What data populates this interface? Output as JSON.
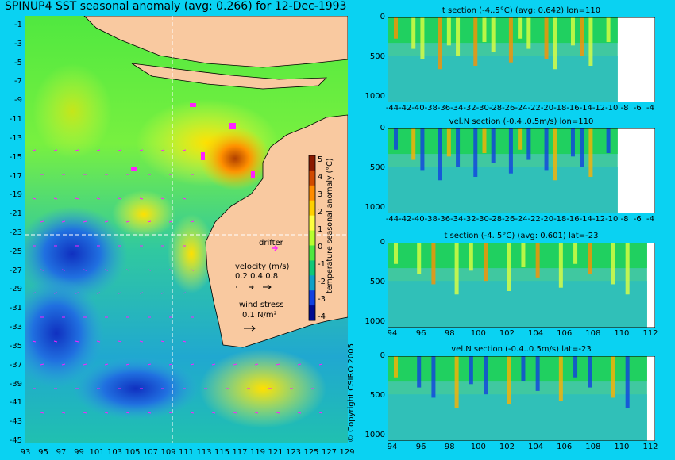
{
  "map": {
    "title": "SPINUP4 SST seasonal anomaly (avg: 0.266) for 12-Dec-1993",
    "lat_labels": [
      "-1",
      "-3",
      "-5",
      "-7",
      "-9",
      "-11",
      "-13",
      "-15",
      "-17",
      "-19",
      "-21",
      "-23",
      "-25",
      "-27",
      "-29",
      "-31",
      "-33",
      "-35",
      "-37",
      "-39",
      "-41",
      "-43",
      "-45"
    ],
    "lon_labels": [
      "93",
      "95",
      "97",
      "99",
      "101",
      "103",
      "105",
      "107",
      "109",
      "111",
      "113",
      "115",
      "117",
      "119",
      "121",
      "123",
      "125",
      "127",
      "129"
    ],
    "crosshair": {
      "lat": -23,
      "lon": 110
    },
    "colorbar": {
      "label": "temperature seasonal anomaly (°C)",
      "ticks": [
        "5",
        "4",
        "3",
        "2",
        "1",
        "0",
        "-1",
        "-2",
        "-3",
        "-4"
      ],
      "colors": [
        "#8b1a00",
        "#d04a00",
        "#ff8c00",
        "#ffd000",
        "#ffff40",
        "#b8ff30",
        "#50e840",
        "#10c878",
        "#10a0c8",
        "#1040e0",
        "#000a90"
      ]
    },
    "drifter_label": "drifter",
    "velocity_label": "velocity (m/s)",
    "velocity_scale": [
      "0.2",
      "0.4",
      "0.8"
    ],
    "wind_label": "wind stress",
    "wind_scale": "0.1 N/m²",
    "land_color": "#f9c9a0",
    "copyright": "© Copyright CSIRO 2005"
  },
  "panels": [
    {
      "title": "t section (-4..5°C) (avg: 0.642) lon=110",
      "depth_ticks": [
        "0",
        "500",
        "1000"
      ],
      "x_ticks": [
        "-44",
        "-42",
        "-40",
        "-38",
        "-36",
        "-34",
        "-32",
        "-30",
        "-28",
        "-26",
        "-24",
        "-22",
        "-20",
        "-18",
        "-16",
        "-14",
        "-12",
        "-10",
        "-8",
        "-6",
        "-4"
      ]
    },
    {
      "title": "vel.N section (-0.4..0.5m/s) lon=110",
      "depth_ticks": [
        "0",
        "500",
        "1000"
      ],
      "x_ticks": [
        "-44",
        "-42",
        "-40",
        "-38",
        "-36",
        "-34",
        "-32",
        "-30",
        "-28",
        "-26",
        "-24",
        "-22",
        "-20",
        "-18",
        "-16",
        "-14",
        "-12",
        "-10",
        "-8",
        "-6",
        "-4"
      ]
    },
    {
      "title": "t section (-4..5°C) (avg: 0.601) lat=-23",
      "depth_ticks": [
        "0",
        "500",
        "1000"
      ],
      "x_ticks": [
        "94",
        "96",
        "98",
        "100",
        "102",
        "104",
        "106",
        "108",
        "110",
        "112"
      ]
    },
    {
      "title": "vel.N section (-0.4..0.5m/s) lat=-23",
      "depth_ticks": [
        "0",
        "500",
        "1000"
      ],
      "x_ticks": [
        "94",
        "96",
        "98",
        "100",
        "102",
        "104",
        "106",
        "108",
        "110",
        "112"
      ]
    }
  ]
}
